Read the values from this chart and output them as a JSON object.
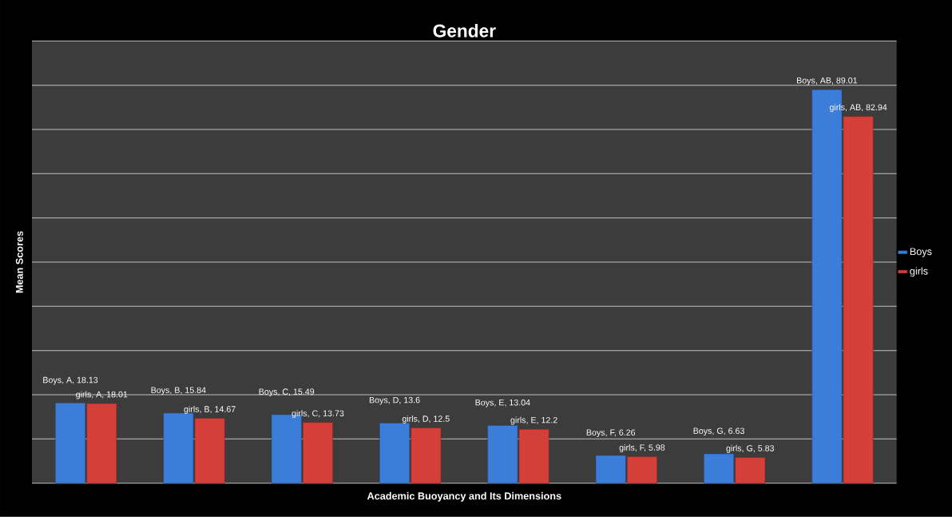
{
  "chart_data": {
    "type": "bar",
    "title": "Gender",
    "xlabel": "Academic Buoyancy and Its Dimensions",
    "ylabel": "Mean Scores",
    "categories": [
      null,
      null,
      null,
      null,
      null,
      null,
      null,
      null
    ],
    "series": [
      {
        "name": "Boys",
        "color": "#3b7dd8",
        "values": [
          18.13,
          15.84,
          15.49,
          13.6,
          13.04,
          6.26,
          6.63,
          89.01
        ],
        "value_labels": [
          "Boys, A, 18.13",
          "Boys, B, 15.84",
          "Boys, C, 15.49",
          "Boys, D, 13.6",
          "Boys, E, 13.04",
          "Boys, F, 6.26",
          "Boys, G, 6.63",
          "Boys, AB, 89.01"
        ]
      },
      {
        "name": "girls",
        "color": "#d43f3a",
        "values": [
          18.01,
          14.67,
          13.73,
          12.5,
          12.2,
          5.98,
          5.83,
          82.94
        ],
        "value_labels": [
          "girls, A, 18.01",
          "girls, B, 14.67",
          "girls, C, 13.73",
          "girls, D, 12.5",
          "girls, E, 12.2",
          "girls, F, 5.98",
          "girls, G, 5.83",
          "girls, AB, 82.94"
        ]
      }
    ],
    "ylim": [
      0,
      100
    ],
    "yticks": [
      {
        "value": 0,
        "label": null
      },
      {
        "value": 10,
        "label": null
      },
      {
        "value": 20,
        "label": null
      },
      {
        "value": 30,
        "label": null
      },
      {
        "value": 40,
        "label": null
      },
      {
        "value": 50,
        "label": null
      },
      {
        "value": 60,
        "label": null
      },
      {
        "value": 70,
        "label": null
      },
      {
        "value": 80,
        "label": null
      },
      {
        "value": 90,
        "label": null
      },
      {
        "value": 100,
        "label": null
      }
    ],
    "grid": "y",
    "legend": "right",
    "tick_labels": false
  }
}
